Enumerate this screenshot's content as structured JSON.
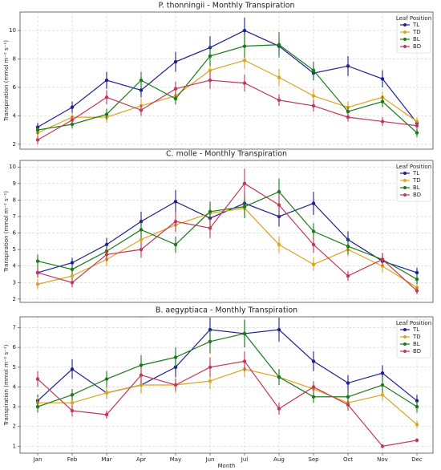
{
  "chart_data": [
    {
      "type": "line",
      "title": "P. thonningii - Monthly Transpiration",
      "ylabel": "Transpiration (mmol m⁻² s⁻¹)",
      "ylim": [
        1.65,
        11.3
      ],
      "yticks": [
        2,
        4,
        6,
        8,
        10
      ],
      "grid": true,
      "legend": "upper right",
      "legend_title": "Leaf Position",
      "series": [
        {
          "name": "TL",
          "color": "#1f1f8f",
          "values": [
            3.2,
            4.6,
            6.5,
            5.8,
            7.8,
            8.8,
            10.0,
            8.9,
            7.0,
            7.5,
            6.6,
            3.5
          ],
          "errors": [
            0.3,
            0.4,
            0.6,
            0.5,
            0.7,
            0.8,
            0.9,
            0.6,
            0.5,
            0.7,
            0.6,
            0.3
          ]
        },
        {
          "name": "TD",
          "color": "#daa520",
          "values": [
            2.8,
            3.9,
            3.9,
            4.7,
            5.4,
            7.2,
            7.9,
            6.7,
            5.4,
            4.6,
            5.3,
            3.6
          ],
          "errors": [
            0.3,
            0.3,
            0.4,
            0.5,
            0.5,
            0.6,
            0.6,
            0.6,
            0.5,
            0.4,
            0.4,
            0.3
          ]
        },
        {
          "name": "BL",
          "color": "#1a7a1a",
          "values": [
            3.0,
            3.4,
            4.1,
            6.5,
            5.2,
            8.2,
            8.9,
            9.0,
            7.2,
            4.3,
            5.0,
            2.8
          ],
          "errors": [
            0.3,
            0.3,
            0.4,
            0.6,
            0.4,
            0.7,
            0.8,
            0.9,
            0.6,
            0.3,
            0.4,
            0.3
          ]
        },
        {
          "name": "BD",
          "color": "#c0395a",
          "values": [
            2.3,
            3.7,
            5.3,
            4.4,
            5.9,
            6.5,
            6.3,
            5.1,
            4.7,
            3.9,
            3.6,
            3.3
          ],
          "errors": [
            0.3,
            0.3,
            0.5,
            0.4,
            0.5,
            0.6,
            0.6,
            0.4,
            0.4,
            0.3,
            0.3,
            0.3
          ]
        }
      ]
    },
    {
      "type": "line",
      "title": "C. molle - Monthly Transpiration",
      "ylabel": "Transpiration (mmol m⁻² s⁻¹)",
      "ylim": [
        1.8,
        10.4
      ],
      "yticks": [
        2,
        3,
        4,
        5,
        6,
        7,
        8,
        9,
        10
      ],
      "grid": true,
      "legend": "upper right",
      "legend_title": "Leaf Position",
      "series": [
        {
          "name": "TL",
          "color": "#1f1f8f",
          "values": [
            3.6,
            4.2,
            5.3,
            6.7,
            7.9,
            6.9,
            7.8,
            7.0,
            7.8,
            5.6,
            4.3,
            3.6
          ],
          "errors": [
            0.3,
            0.3,
            0.4,
            0.6,
            0.7,
            0.6,
            0.7,
            0.6,
            0.7,
            0.5,
            0.4,
            0.3
          ]
        },
        {
          "name": "TD",
          "color": "#daa520",
          "values": [
            2.9,
            3.4,
            4.4,
            5.6,
            6.5,
            7.2,
            7.5,
            5.3,
            4.1,
            5.0,
            4.0,
            2.7
          ],
          "errors": [
            0.3,
            0.3,
            0.4,
            0.5,
            0.5,
            0.6,
            0.6,
            0.5,
            0.4,
            0.4,
            0.4,
            0.3
          ]
        },
        {
          "name": "BL",
          "color": "#1a7a1a",
          "values": [
            4.3,
            3.8,
            4.9,
            6.2,
            5.3,
            7.3,
            7.6,
            8.5,
            6.1,
            5.2,
            4.4,
            3.2
          ],
          "errors": [
            0.4,
            0.3,
            0.4,
            0.5,
            0.5,
            0.6,
            0.7,
            0.8,
            0.5,
            0.5,
            0.4,
            0.3
          ]
        },
        {
          "name": "BD",
          "color": "#c0395a",
          "values": [
            3.6,
            3.0,
            4.7,
            5.0,
            6.7,
            6.3,
            9.0,
            7.7,
            5.3,
            3.4,
            4.4,
            2.5
          ],
          "errors": [
            0.3,
            0.3,
            0.4,
            0.5,
            0.6,
            0.6,
            0.9,
            0.7,
            0.5,
            0.3,
            0.4,
            0.2
          ]
        }
      ]
    },
    {
      "type": "line",
      "title": "B. aegyptiaca - Monthly Transpiration",
      "ylabel": "Transpiration (mmol m⁻² s⁻¹)",
      "xlabel": "Month",
      "categories": [
        "Jan",
        "Feb",
        "Mar",
        "Apr",
        "May",
        "Jun",
        "Jul",
        "Aug",
        "Sep",
        "Oct",
        "Nov",
        "Dec"
      ],
      "ylim": [
        0.65,
        7.55
      ],
      "yticks": [
        1,
        2,
        3,
        4,
        5,
        6,
        7
      ],
      "grid": true,
      "legend": "upper right",
      "legend_title": "Leaf Position",
      "series": [
        {
          "name": "TL",
          "color": "#1f1f8f",
          "values": [
            3.3,
            4.9,
            3.7,
            4.1,
            5.0,
            6.9,
            6.7,
            6.9,
            5.3,
            4.2,
            4.7,
            3.3
          ],
          "errors": [
            0.3,
            0.5,
            0.3,
            0.4,
            0.5,
            0.6,
            0.7,
            0.6,
            0.5,
            0.4,
            0.4,
            0.3
          ]
        },
        {
          "name": "TD",
          "color": "#daa520",
          "values": [
            3.2,
            3.2,
            3.7,
            4.1,
            4.1,
            4.3,
            4.9,
            4.5,
            3.9,
            3.2,
            3.6,
            2.1
          ],
          "errors": [
            0.3,
            0.3,
            0.3,
            0.4,
            0.4,
            0.4,
            0.4,
            0.4,
            0.3,
            0.3,
            0.3,
            0.2
          ]
        },
        {
          "name": "BL",
          "color": "#1a7a1a",
          "values": [
            3.0,
            3.6,
            4.4,
            5.1,
            5.5,
            6.3,
            6.7,
            4.5,
            3.5,
            3.5,
            4.1,
            3.0
          ],
          "errors": [
            0.3,
            0.3,
            0.4,
            0.5,
            0.5,
            0.6,
            0.7,
            0.4,
            0.3,
            0.3,
            0.4,
            0.3
          ]
        },
        {
          "name": "BD",
          "color": "#c0395a",
          "values": [
            4.4,
            2.8,
            2.6,
            4.6,
            4.1,
            5.0,
            5.3,
            2.9,
            4.0,
            3.1,
            1.0,
            1.3
          ],
          "errors": [
            0.4,
            0.3,
            0.2,
            0.4,
            0.3,
            0.5,
            0.5,
            0.3,
            0.3,
            0.3,
            0.1,
            0.1
          ]
        }
      ]
    }
  ]
}
